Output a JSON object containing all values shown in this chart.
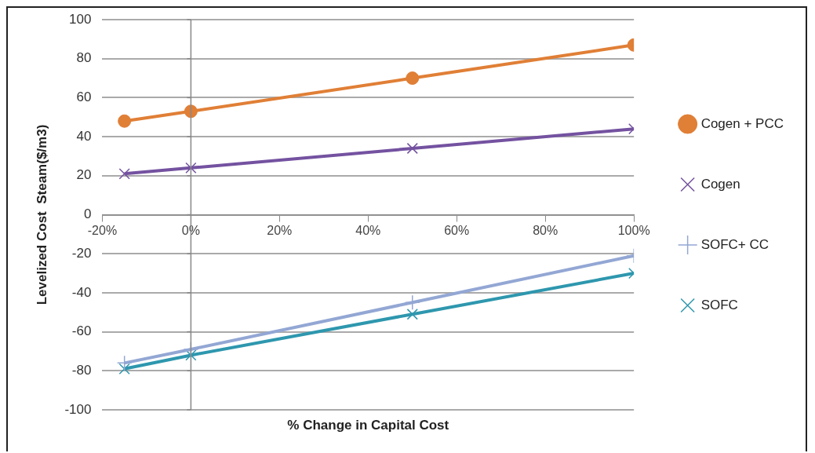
{
  "chart_data": {
    "type": "line",
    "xlabel": "% Change in Capital Cost",
    "ylabel": "Levelized Cost  Steam($/m3)",
    "x": [
      -15,
      0,
      50,
      100
    ],
    "series": [
      {
        "name": "Cogen + PCC",
        "color": "#e07f36",
        "marker": "circle",
        "values": [
          48,
          53,
          70,
          87
        ]
      },
      {
        "name": "Cogen",
        "color": "#7452a0",
        "marker": "cross",
        "values": [
          21,
          24,
          34,
          44
        ]
      },
      {
        "name": "SOFC+ CC",
        "color": "#93a7d4",
        "marker": "plus",
        "values": [
          -76,
          -69,
          -45,
          -21
        ]
      },
      {
        "name": "SOFC",
        "color": "#2e97ae",
        "marker": "cross",
        "values": [
          -79,
          -72,
          -51,
          -30
        ]
      }
    ],
    "xlim": [
      -20,
      100
    ],
    "xticks": [
      {
        "value": -20,
        "label": "-20%"
      },
      {
        "value": 0,
        "label": "0%"
      },
      {
        "value": 20,
        "label": "20%"
      },
      {
        "value": 40,
        "label": "40%"
      },
      {
        "value": 60,
        "label": "60%"
      },
      {
        "value": 80,
        "label": "80%"
      },
      {
        "value": 100,
        "label": "100%"
      }
    ],
    "ylim": [
      -100,
      100
    ],
    "yticks": [
      -100,
      -80,
      -60,
      -40,
      -20,
      0,
      20,
      40,
      60,
      80,
      100
    ],
    "grid": "y",
    "legend": "right",
    "line_style": "solid"
  }
}
